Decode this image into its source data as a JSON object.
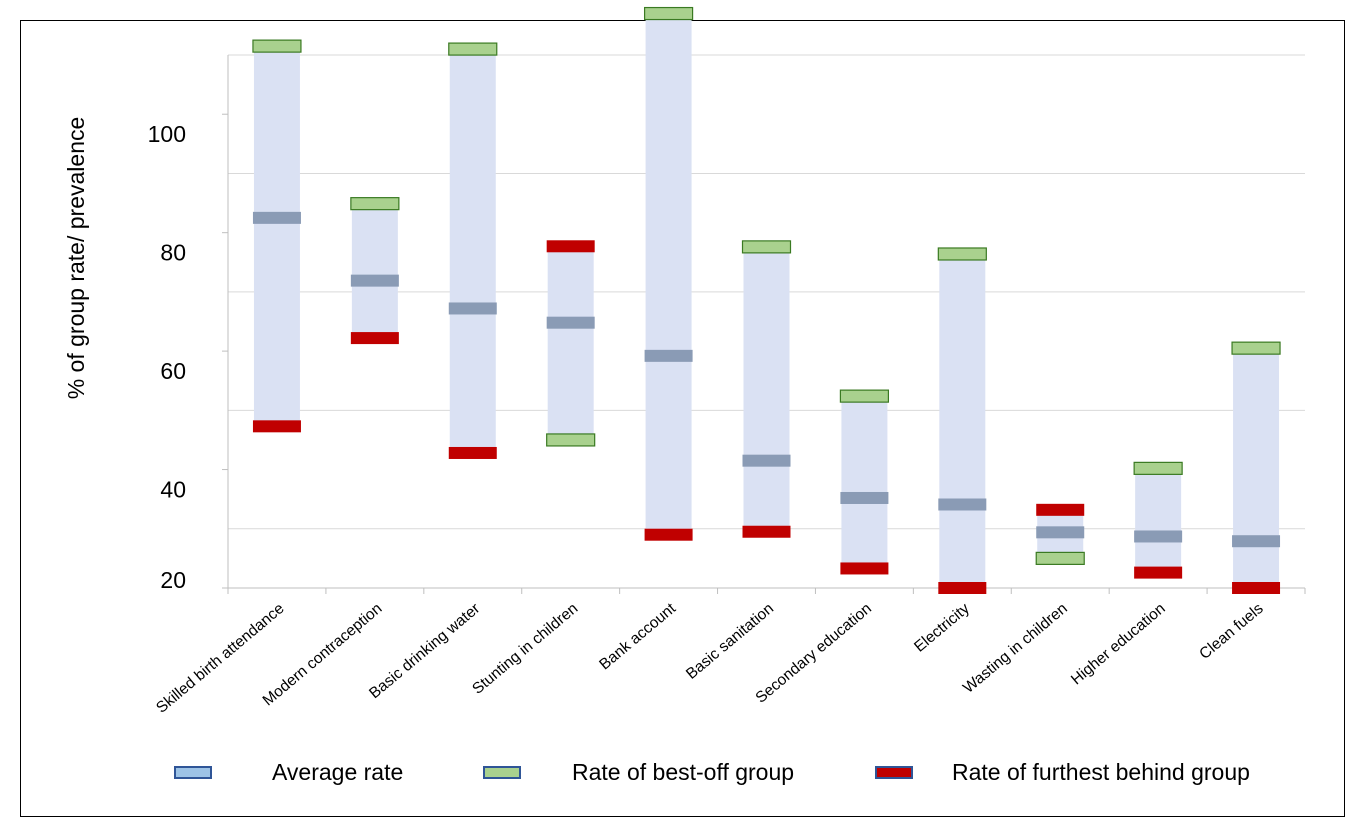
{
  "chart_data": {
    "type": "range",
    "title": "",
    "xlabel": "",
    "ylabel": "% of group rate/ prevalence",
    "ylim": [
      20,
      110
    ],
    "y_ticks": [
      20,
      40,
      60,
      80,
      100
    ],
    "grid": true,
    "legend_position": "bottom",
    "categories": [
      "Skilled birth attendance",
      "Modern contraception",
      "Basic drinking water",
      "Stunting in children",
      "Bank account",
      "Basic sanitation",
      "Secondary education",
      "Electricity",
      "Wasting in children",
      "Higher education",
      "Clean fuels"
    ],
    "series": [
      {
        "name": "Average rate",
        "color": "#8a9bb5",
        "values": [
          82.5,
          71.9,
          67.2,
          64.8,
          59.2,
          41.5,
          35.2,
          34.1,
          29.4,
          28.7,
          27.9
        ]
      },
      {
        "name": "Rate of best-off group",
        "color": "#a9d18e",
        "values": [
          111.5,
          84.9,
          111.0,
          45.0,
          117.0,
          77.6,
          52.4,
          76.4,
          25.0,
          40.2,
          60.5
        ]
      },
      {
        "name": "Rate of furthest behind group",
        "color": "#c00000",
        "values": [
          47.3,
          62.2,
          42.8,
          77.7,
          29.0,
          29.5,
          23.3,
          20.0,
          33.2,
          22.6,
          20.0
        ]
      }
    ],
    "range_fill": "#dae1f3"
  }
}
